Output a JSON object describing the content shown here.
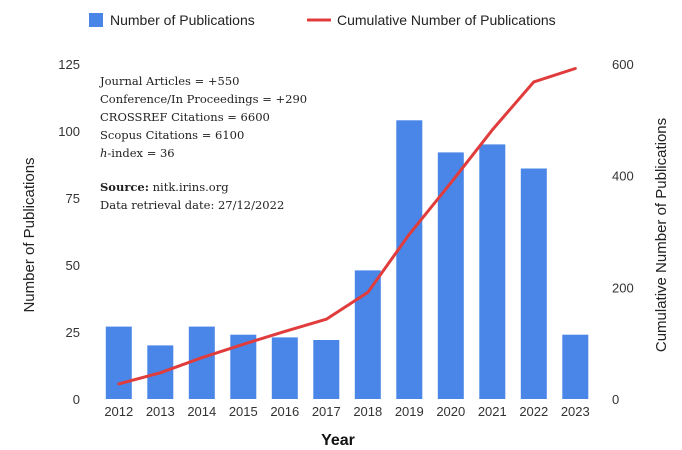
{
  "chart_data": {
    "type": "bar+line",
    "categories": [
      "2012",
      "2013",
      "2014",
      "2015",
      "2016",
      "2017",
      "2018",
      "2019",
      "2020",
      "2021",
      "2022",
      "2023"
    ],
    "series": [
      {
        "name": "Number of Publications",
        "type": "bar",
        "axis": "left",
        "color": "#4a86e8",
        "values": [
          27,
          20,
          27,
          24,
          23,
          22,
          48,
          104,
          92,
          95,
          86,
          24
        ]
      },
      {
        "name": "Cumulative Number of Publications",
        "type": "line",
        "axis": "right",
        "color": "#e03c3c",
        "values": [
          27,
          47,
          74,
          98,
          121,
          143,
          191,
          295,
          387,
          482,
          568,
          592
        ]
      }
    ],
    "xlabel": "Year",
    "ylabel_left": "Number of Publications",
    "ylabel_right": "Cumulative Number of Publications",
    "ylim_left": [
      0,
      125
    ],
    "ylim_right": [
      0,
      600
    ],
    "yticks_left": [
      "0",
      "25",
      "50",
      "75",
      "100",
      "125"
    ],
    "yticks_right": [
      "0",
      "200",
      "400",
      "600"
    ],
    "legend_position": "top",
    "grid": false,
    "annotations": {
      "lines": [
        "Journal Articles = +550",
        "Conference/In Proceedings = +290",
        "CROSSREF Citations = 6600",
        "Scopus Citations = 6100"
      ],
      "hindex_label": "h",
      "hindex_rest": "-index = 36",
      "source_label": "Source:",
      "source_value": " nitk.irins.org",
      "retrieval": "Data retrieval date: 27/12/2022"
    }
  }
}
